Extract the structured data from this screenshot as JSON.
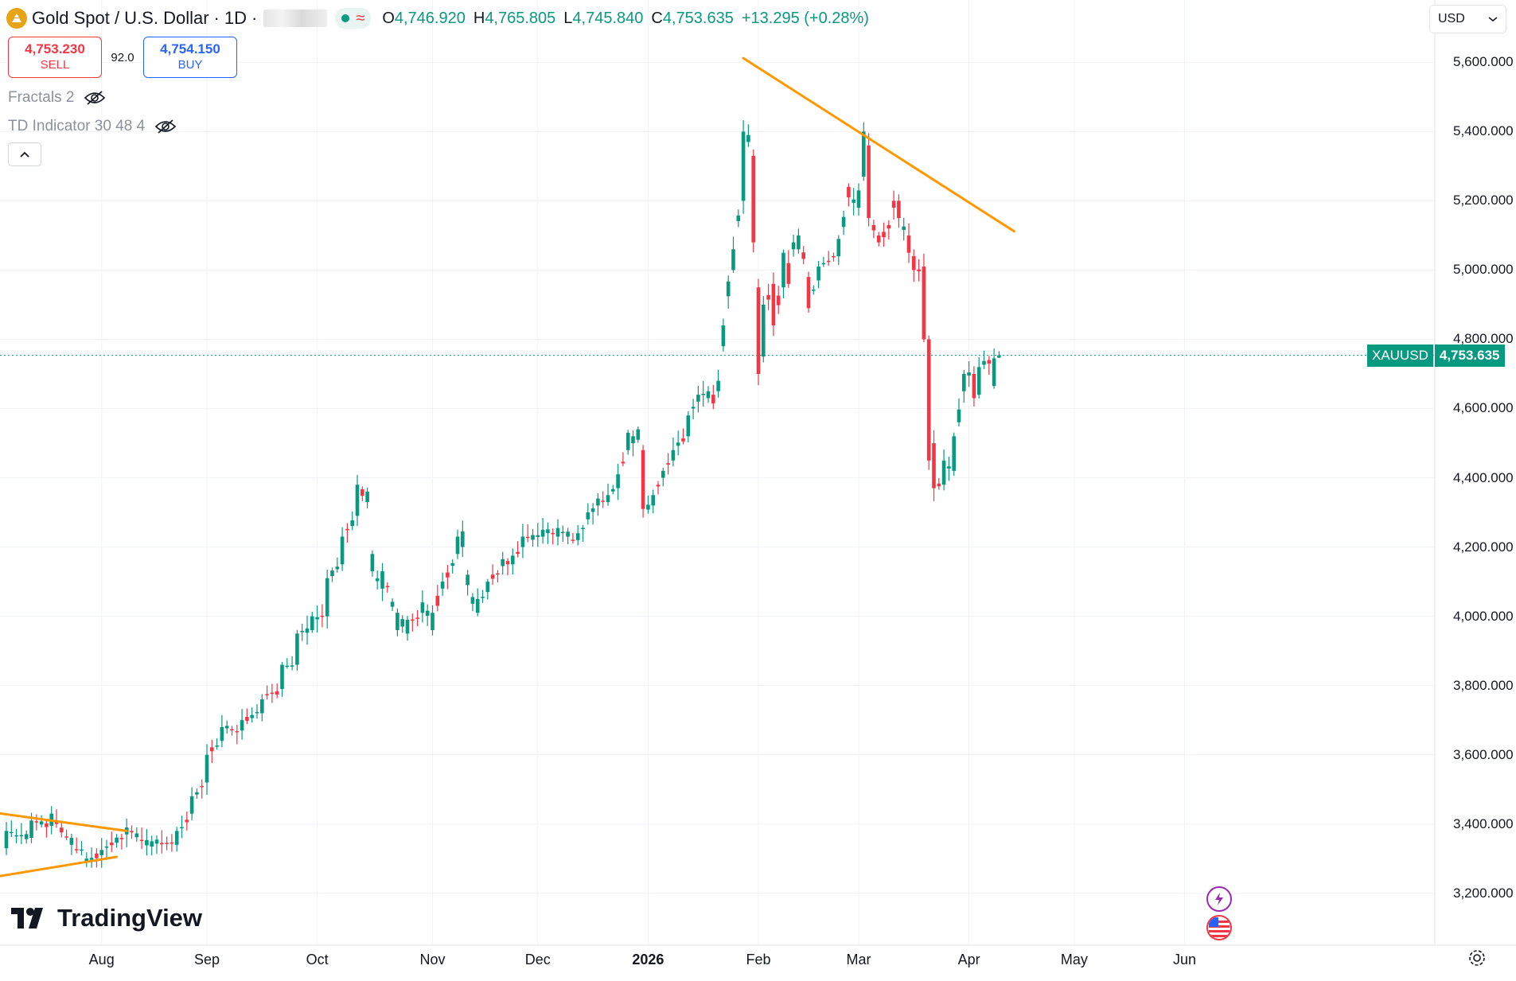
{
  "header": {
    "symbol_name": "Gold Spot / U.S. Dollar",
    "separator1": "·",
    "interval": "1D",
    "separator2": "·",
    "wave_glyph": "≈",
    "ohlc": {
      "o_label": "O",
      "o_value": "4,746.920",
      "h_label": "H",
      "h_value": "4,765.805",
      "l_label": "L",
      "l_value": "4,745.840",
      "c_label": "C",
      "c_value": "4,753.635",
      "change": "+13.295 (+0.28%)"
    }
  },
  "trade": {
    "sell_price": "4,753.230",
    "sell_label": "SELL",
    "spread": "92.0",
    "buy_price": "4,754.150",
    "buy_label": "BUY"
  },
  "indicators": [
    {
      "name": "Fractals 2"
    },
    {
      "name": "TD Indicator 30 48 4"
    }
  ],
  "currency": {
    "label": "USD"
  },
  "last_price_tag": {
    "symbol": "XAUUSD",
    "value": "4,753.635",
    "price": 4753.635
  },
  "branding": {
    "logo_text": "TradingView"
  },
  "colors": {
    "up": "#089981",
    "down": "#f23645",
    "trendline": "#ff9800",
    "grid": "#f0f3fa",
    "axis_text": "#131722",
    "last_price": "#089981"
  },
  "chart_data": {
    "type": "candlestick",
    "title": "Gold Spot / U.S. Dollar · 1D",
    "y_axis": {
      "ylim": [
        3050,
        5780
      ],
      "ticks": [
        3200,
        3400,
        3600,
        3800,
        4000,
        4200,
        4400,
        4600,
        4800,
        5000,
        5200,
        5400,
        5600
      ],
      "tick_labels": [
        "3,200.000",
        "3,400.000",
        "3,600.000",
        "3,800.000",
        "4,000.000",
        "4,200.000",
        "4,400.000",
        "4,600.000",
        "4,800.000",
        "5,000.000",
        "5,200.000",
        "5,400.000",
        "5,600.000"
      ]
    },
    "x_axis": {
      "labels": [
        {
          "text": "Aug",
          "bar": 19,
          "bold": false
        },
        {
          "text": "Sep",
          "bar": 40,
          "bold": false
        },
        {
          "text": "Oct",
          "bar": 62,
          "bold": false
        },
        {
          "text": "Nov",
          "bar": 85,
          "bold": false
        },
        {
          "text": "Dec",
          "bar": 106,
          "bold": false
        },
        {
          "text": "2026",
          "bar": 128,
          "bold": true
        },
        {
          "text": "Feb",
          "bar": 150,
          "bold": false
        },
        {
          "text": "Mar",
          "bar": 170,
          "bold": false
        },
        {
          "text": "Apr",
          "bar": 192,
          "bold": false
        },
        {
          "text": "May",
          "bar": 213,
          "bold": false
        },
        {
          "text": "Jun",
          "bar": 235,
          "bold": false
        }
      ]
    },
    "anchors": [
      [
        0,
        3330,
        3380
      ],
      [
        5,
        3360,
        3410
      ],
      [
        9,
        3395,
        3430
      ],
      [
        13,
        3340,
        3360
      ],
      [
        16,
        3290,
        3300
      ],
      [
        19,
        3310,
        3325
      ],
      [
        24,
        3370,
        3390
      ],
      [
        29,
        3335,
        3350
      ],
      [
        34,
        3340,
        3380
      ],
      [
        37,
        3430,
        3480
      ],
      [
        40,
        3520,
        3600
      ],
      [
        43,
        3640,
        3680
      ],
      [
        47,
        3670,
        3700
      ],
      [
        51,
        3720,
        3760
      ],
      [
        55,
        3790,
        3860
      ],
      [
        58,
        3860,
        3950
      ],
      [
        61,
        3960,
        4000
      ],
      [
        64,
        4000,
        4110
      ],
      [
        67,
        4150,
        4230
      ],
      [
        70,
        4290,
        4380
      ],
      [
        72,
        4330,
        4360
      ],
      [
        73,
        4130,
        4180
      ],
      [
        75,
        4080,
        4130
      ],
      [
        78,
        3960,
        4010
      ],
      [
        80,
        3950,
        3990
      ],
      [
        83,
        4010,
        4040
      ],
      [
        85,
        3960,
        4010
      ],
      [
        87,
        4080,
        4100
      ],
      [
        90,
        4180,
        4230
      ],
      [
        91,
        4200,
        4245
      ],
      [
        92,
        4090,
        4120
      ],
      [
        94,
        4010,
        4050
      ],
      [
        96,
        4070,
        4100
      ],
      [
        99,
        4145,
        4165
      ],
      [
        101,
        4150,
        4175
      ],
      [
        103,
        4200,
        4230
      ],
      [
        107,
        4230,
        4250
      ],
      [
        110,
        4230,
        4255
      ],
      [
        114,
        4220,
        4240
      ],
      [
        116,
        4280,
        4300
      ],
      [
        118,
        4320,
        4340
      ],
      [
        120,
        4330,
        4350
      ],
      [
        122,
        4370,
        4410
      ],
      [
        124,
        4480,
        4530
      ],
      [
        125,
        4500,
        4520
      ],
      [
        126,
        4510,
        4540
      ],
      [
        127,
        4480,
        4310
      ],
      [
        129,
        4320,
        4350
      ],
      [
        131,
        4400,
        4420
      ],
      [
        133,
        4450,
        4480
      ],
      [
        136,
        4520,
        4580
      ],
      [
        138,
        4620,
        4640
      ],
      [
        140,
        4630,
        4650
      ],
      [
        141,
        4640,
        4615
      ],
      [
        142,
        4650,
        4680
      ],
      [
        143,
        4780,
        4840
      ],
      [
        145,
        5000,
        5060
      ],
      [
        147,
        5200,
        5400
      ],
      [
        148,
        5370,
        5390
      ],
      [
        149,
        5330,
        5080
      ],
      [
        150,
        4950,
        4700
      ],
      [
        151,
        4750,
        4900
      ],
      [
        153,
        4960,
        4840
      ],
      [
        155,
        4950,
        5050
      ],
      [
        156,
        5020,
        4960
      ],
      [
        157,
        5060,
        5080
      ],
      [
        158,
        5060,
        5100
      ],
      [
        160,
        4980,
        4890
      ],
      [
        162,
        4970,
        5010
      ],
      [
        163,
        5020,
        5020
      ],
      [
        166,
        5040,
        5090
      ],
      [
        168,
        5240,
        5210
      ],
      [
        170,
        5180,
        5230
      ],
      [
        171,
        5270,
        5400
      ],
      [
        172,
        5360,
        5150
      ],
      [
        174,
        5100,
        5080
      ],
      [
        176,
        5130,
        5120
      ],
      [
        177,
        5200,
        5180
      ],
      [
        178,
        5200,
        5150
      ],
      [
        180,
        5100,
        5050
      ],
      [
        181,
        5040,
        5000
      ],
      [
        183,
        5010,
        4800
      ],
      [
        184,
        4800,
        4450
      ],
      [
        185,
        4500,
        4370
      ],
      [
        187,
        4380,
        4450
      ],
      [
        189,
        4420,
        4520
      ],
      [
        191,
        4650,
        4700
      ],
      [
        193,
        4700,
        4630
      ],
      [
        194,
        4640,
        4720
      ],
      [
        196,
        4740,
        4730
      ],
      [
        197,
        4665,
        4745
      ],
      [
        198,
        4746.92,
        4753.635
      ]
    ],
    "trendlines": [
      {
        "name": "channel-upper",
        "points": [
          [
            -2,
            3432
          ],
          [
            24,
            3380
          ]
        ]
      },
      {
        "name": "channel-lower",
        "points": [
          [
            -2,
            3248
          ],
          [
            22,
            3305
          ]
        ]
      },
      {
        "name": "descending-resistance",
        "points": [
          [
            147,
            5612
          ],
          [
            201,
            5112
          ]
        ]
      }
    ],
    "last": {
      "open": 4746.92,
      "high": 4765.805,
      "low": 4745.84,
      "close": 4753.635,
      "change": 13.295,
      "change_pct": 0.28
    }
  }
}
